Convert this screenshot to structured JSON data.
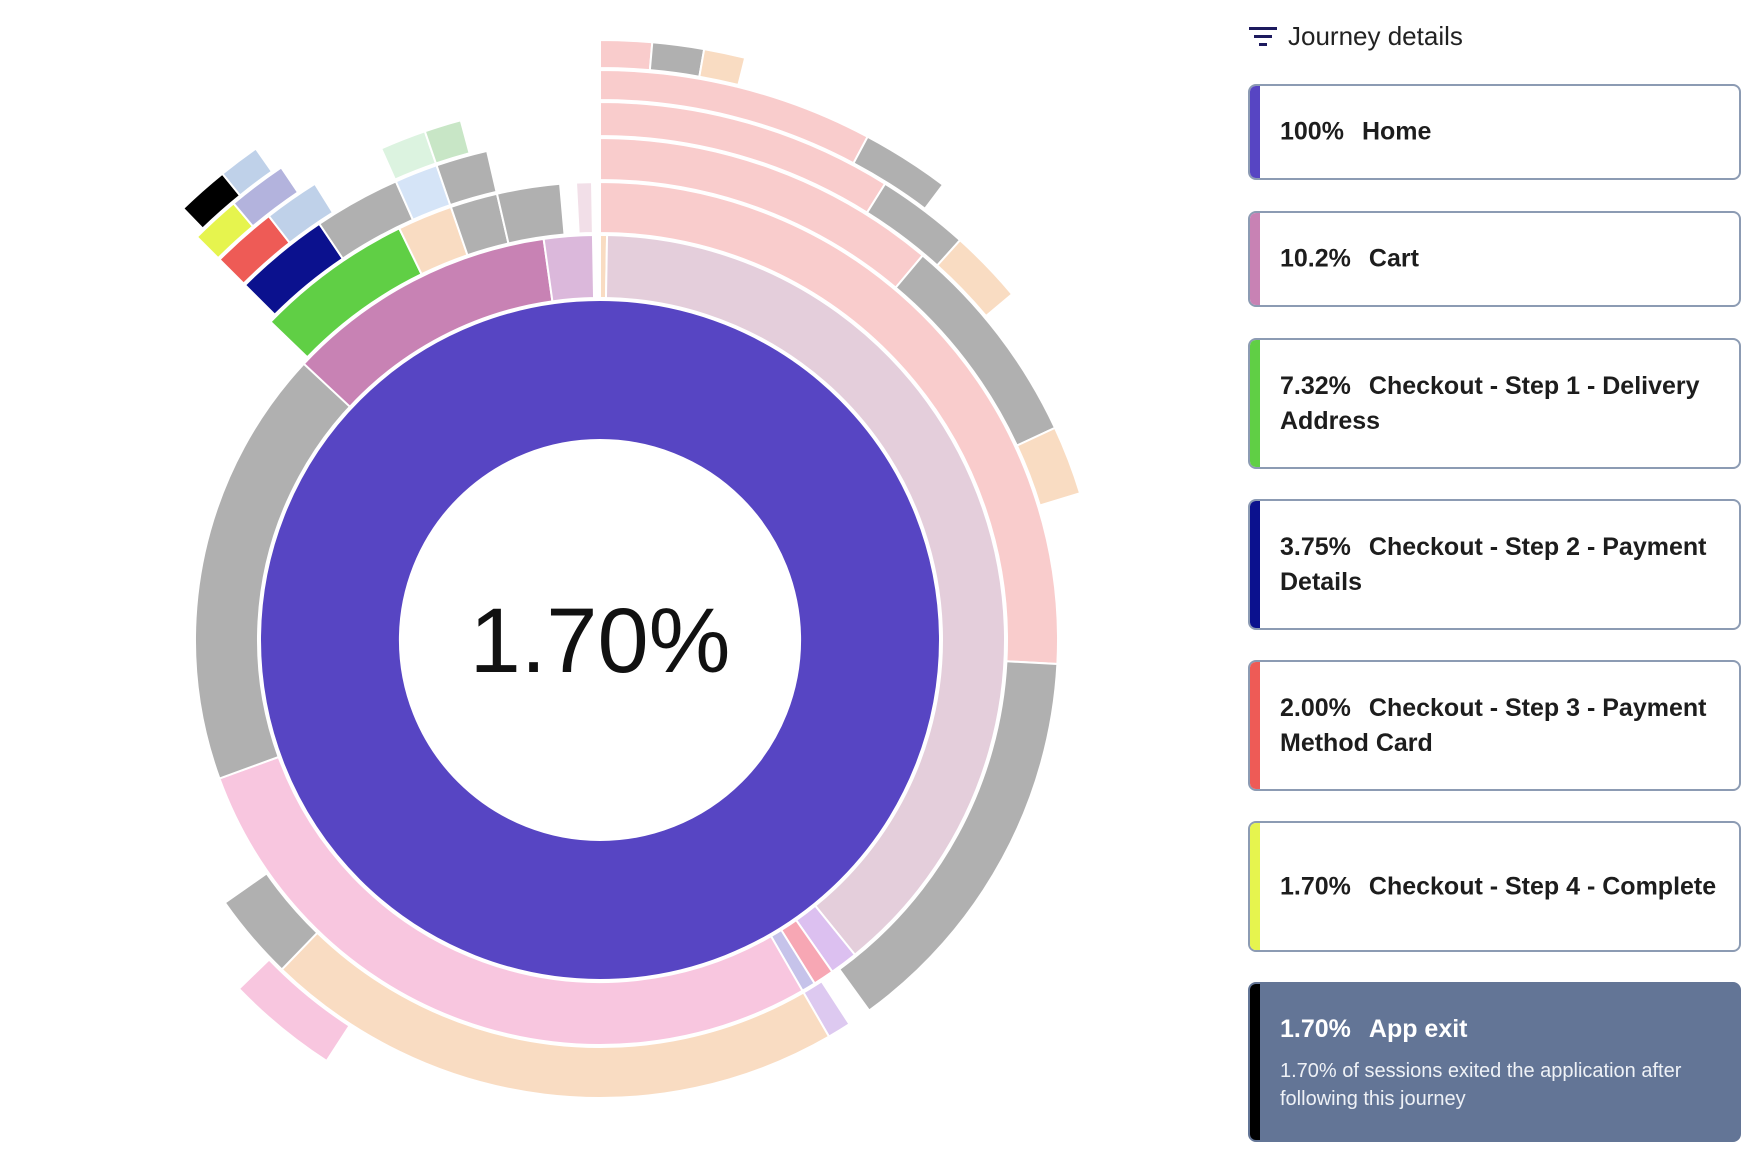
{
  "center_value": "1.70%",
  "header": {
    "title": "Journey details",
    "icon": "filter-icon"
  },
  "cards": [
    {
      "pct": "100%",
      "label": "Home",
      "color": "#5745c3"
    },
    {
      "pct": "10.2%",
      "label": "Cart",
      "color": "#c882b4"
    },
    {
      "pct": "7.32%",
      "label": "Checkout - Step 1 - Delivery Address",
      "color": "#60cf45"
    },
    {
      "pct": "3.75%",
      "label": "Checkout - Step 2 - Payment Details",
      "color": "#0b118e"
    },
    {
      "pct": "2.00%",
      "label": "Checkout - Step 3 - Payment Method Card",
      "color": "#ee5b56"
    },
    {
      "pct": "1.70%",
      "label": "Checkout - Step 4 - Complete",
      "color": "#e6f44e"
    },
    {
      "pct": "1.70%",
      "label": "App exit",
      "color": "#000000",
      "desc": "1.70% of sessions exited the application after following this journey",
      "active": true
    }
  ],
  "chart_data": {
    "type": "sunburst",
    "highlighted_journey": [
      "Home",
      "Cart",
      "Checkout - Step 1 - Delivery Address",
      "Checkout - Step 2 - Payment Details",
      "Checkout - Step 3 - Payment Method Card",
      "Checkout - Step 4 - Complete",
      "App exit"
    ],
    "highlighted_values_pct": [
      100,
      10.2,
      7.32,
      3.75,
      2.0,
      1.7,
      1.7
    ],
    "rings": [
      [
        {
          "start": 0,
          "end": 360,
          "color": "#5745c3"
        }
      ],
      [
        {
          "start": 0,
          "end": 1,
          "color": "#f9dcc2"
        },
        {
          "start": 1,
          "end": 141,
          "color": "#e4cedb"
        },
        {
          "start": 141,
          "end": 145,
          "color": "#dcc0f0"
        },
        {
          "start": 145,
          "end": 148,
          "color": "#f7a7b4"
        },
        {
          "start": 148,
          "end": 150,
          "color": "#c6c3ea"
        },
        {
          "start": 150,
          "end": 250,
          "color": "#f8c6df"
        },
        {
          "start": 250,
          "end": 347,
          "color": "#b0b0b0"
        },
        {
          "start": 313,
          "end": 352,
          "color": "#c882b4",
          "highlight": true
        },
        {
          "start": 352,
          "end": 359,
          "color": "#dbb8db"
        }
      ],
      [
        {
          "start": 0,
          "end": 93,
          "color": "#f9cccc"
        },
        {
          "start": 93,
          "end": 144,
          "color": "#b0b0b0"
        },
        {
          "start": 147,
          "end": 150,
          "color": "#ddc9f0"
        },
        {
          "start": 150,
          "end": 224,
          "color": "#f9dcc2"
        },
        {
          "start": 224,
          "end": 235,
          "color": "#b0b0b0"
        },
        {
          "start": 314,
          "end": 334,
          "color": "#60cf45",
          "highlight": true
        },
        {
          "start": 334,
          "end": 341,
          "color": "#f9dcc2"
        },
        {
          "start": 341,
          "end": 347,
          "color": "#b0b0b0"
        },
        {
          "start": 347,
          "end": 355,
          "color": "#b0b0b0"
        },
        {
          "start": 357,
          "end": 359,
          "color": "#f2dfe8"
        }
      ],
      [
        {
          "start": 0,
          "end": 40,
          "color": "#f9cccc"
        },
        {
          "start": 40,
          "end": 65,
          "color": "#b0b0b0"
        },
        {
          "start": 65,
          "end": 73,
          "color": "#f9dcc2"
        },
        {
          "start": 213,
          "end": 226,
          "color": "#f8c6df"
        },
        {
          "start": 315,
          "end": 326,
          "color": "#0b118e",
          "highlight": true
        },
        {
          "start": 326,
          "end": 336,
          "color": "#b0b0b0"
        },
        {
          "start": 336,
          "end": 341,
          "color": "#d5e4f7"
        },
        {
          "start": 341,
          "end": 347,
          "color": "#b0b0b0"
        }
      ],
      [
        {
          "start": 0,
          "end": 32,
          "color": "#f9cccc"
        },
        {
          "start": 32,
          "end": 42,
          "color": "#b0b0b0"
        },
        {
          "start": 42,
          "end": 50,
          "color": "#f9dcc2"
        },
        {
          "start": 315,
          "end": 322,
          "color": "#ee5b56",
          "highlight": true
        },
        {
          "start": 322,
          "end": 328,
          "color": "#bfd1e9"
        },
        {
          "start": 336,
          "end": 341,
          "color": "#dcf3e0"
        },
        {
          "start": 341,
          "end": 345,
          "color": "#c8e6c6"
        }
      ],
      [
        {
          "start": 0,
          "end": 28,
          "color": "#f9cccc"
        },
        {
          "start": 28,
          "end": 37,
          "color": "#b0b0b0"
        },
        {
          "start": 315,
          "end": 320,
          "color": "#e6f44e",
          "highlight": true
        },
        {
          "start": 320,
          "end": 326,
          "color": "#b3b3dd"
        }
      ],
      [
        {
          "start": 0,
          "end": 5,
          "color": "#f9cccc"
        },
        {
          "start": 5,
          "end": 10,
          "color": "#b0b0b0"
        },
        {
          "start": 10,
          "end": 14,
          "color": "#f9dcc2"
        },
        {
          "start": 316,
          "end": 321,
          "color": "#000000",
          "highlight": true
        },
        {
          "start": 321,
          "end": 325,
          "color": "#bfd1e9"
        }
      ]
    ]
  }
}
